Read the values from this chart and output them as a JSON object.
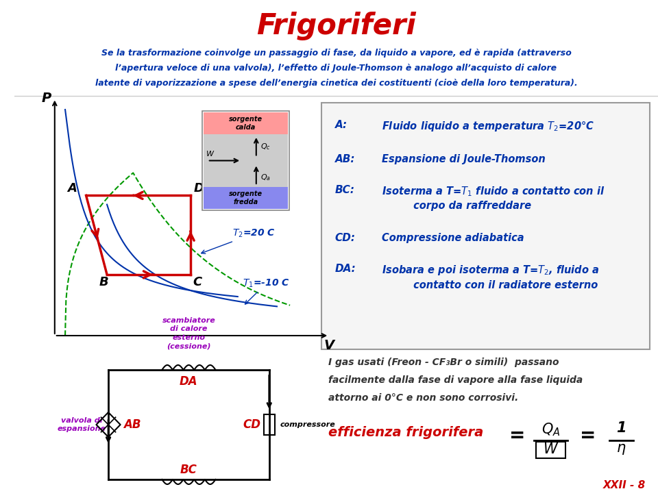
{
  "title": "Frigoriferi",
  "title_color": "#cc0000",
  "bg_color": "#ffffff",
  "left_bar_color": "#0033aa",
  "header_line1": "Se la trasformazione coinvolge un passaggio di fase, da liquido a vapore, ed è rapida (attraverso",
  "header_line2": "l’apertura veloce di una valvola), l’effetto di Joule-Thomson è analogo all’acquisto di calore",
  "header_line3": "latente di vaporizzazione a spese dell’energia cinetica dei costituenti (cioè della loro temperatura).",
  "header_color": "#0033aa",
  "header_red": "#cc0000",
  "cycle_color": "#cc0000",
  "isotherm_color": "#0033aa",
  "dashed_color": "#009900",
  "right_box_key_color": "#0033aa",
  "right_box_val_color": "#0033aa",
  "circuit_label_color": "#9900bb",
  "circuit_seg_color": "#cc0000",
  "efficiency_color": "#cc0000",
  "bottom_text_color": "#333333",
  "xxii_color": "#cc0000",
  "xxii_label": "XXII - 8"
}
